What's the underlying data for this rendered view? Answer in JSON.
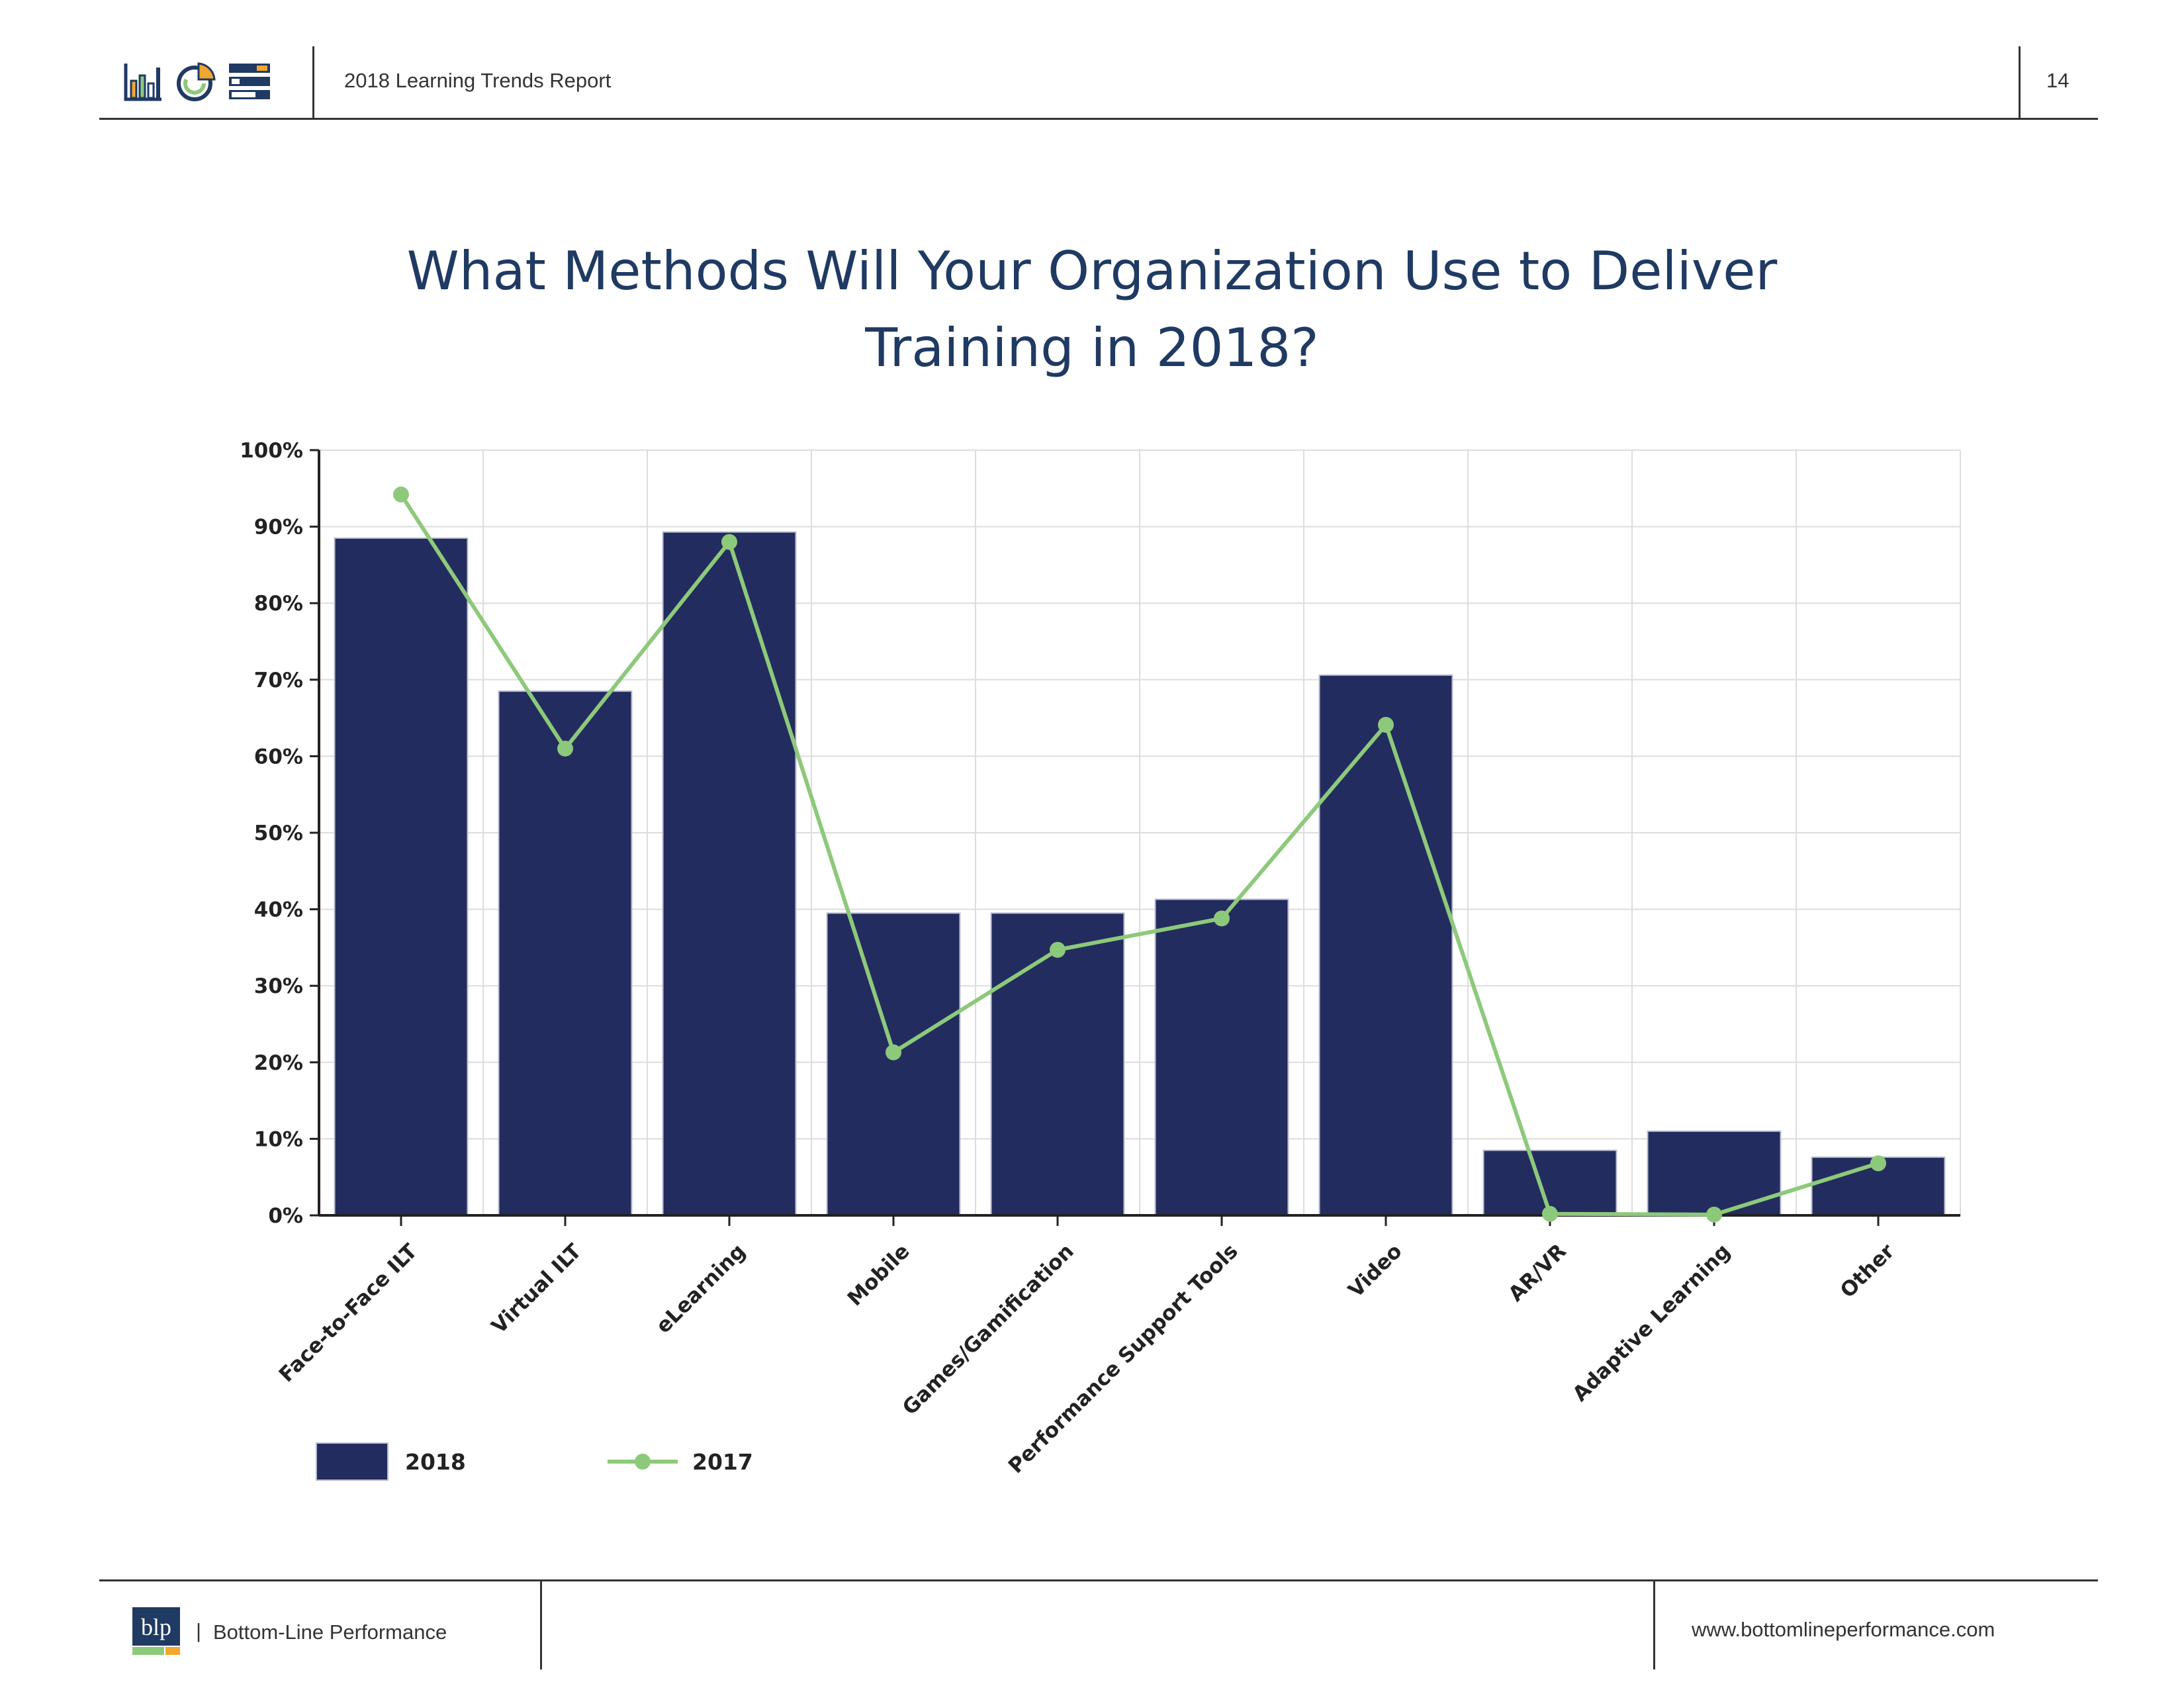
{
  "header": {
    "title": "2018 Learning Trends Report",
    "page_number": "14",
    "icons": [
      "bar-chart-icon",
      "pie-chart-icon",
      "list-bars-icon"
    ]
  },
  "footer": {
    "logo_text": "blp",
    "separator": "|",
    "company": "Bottom-Line Performance",
    "url": "www.bottomlineperformance.com"
  },
  "colors": {
    "bar_2018": "#232c5f",
    "line_2017": "#8dc97a",
    "title": "#1f3a63",
    "grid": "#dddddd"
  },
  "chart_data": {
    "type": "bar",
    "title": "What Methods Will Your Organization Use to Deliver Training in 2018?",
    "categories": [
      "Face-to-Face ILT",
      "Virtual ILT",
      "eLearning",
      "Mobile",
      "Games/Gamification",
      "Performance Support Tools",
      "Video",
      "AR/VR",
      "Adaptive Learning",
      "Other"
    ],
    "series": [
      {
        "name": "2018",
        "kind": "bar",
        "values": [
          88.5,
          68.5,
          89.3,
          39.5,
          39.5,
          41.3,
          70.6,
          8.5,
          11.0,
          7.6
        ]
      },
      {
        "name": "2017",
        "kind": "line",
        "values": [
          94.2,
          61.0,
          88.0,
          21.3,
          34.7,
          38.8,
          64.1,
          0.2,
          0.1,
          6.8
        ]
      }
    ],
    "yticks": [
      "0%",
      "10%",
      "20%",
      "30%",
      "40%",
      "50%",
      "60%",
      "70%",
      "80%",
      "90%",
      "100%"
    ],
    "ylim": [
      0,
      100
    ],
    "grid": true,
    "legend_position": "bottom-left"
  }
}
